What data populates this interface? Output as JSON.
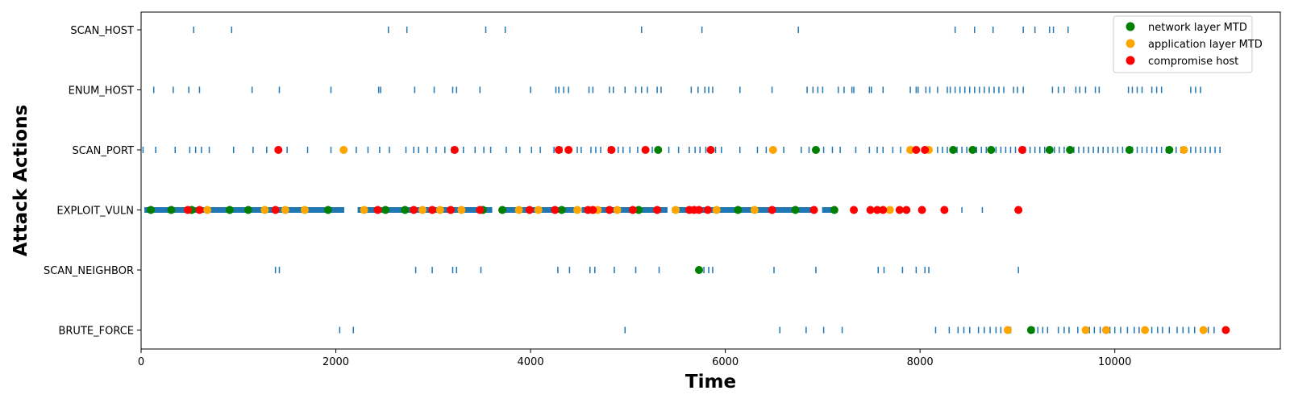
{
  "chart_data": {
    "type": "scatter",
    "title": "",
    "xlabel": "Time",
    "ylabel": "Attack Actions",
    "xlim": [
      0,
      11700
    ],
    "x_ticks": [
      0,
      2000,
      4000,
      6000,
      8000,
      10000
    ],
    "categories": [
      "BRUTE_FORCE",
      "SCAN_NEIGHBOR",
      "EXPLOIT_VULN",
      "SCAN_PORT",
      "ENUM_HOST",
      "SCAN_HOST"
    ],
    "grid": false,
    "legend_position": "top-right",
    "action_color": "#1f77b4",
    "actions": [
      {
        "category": "SCAN_HOST",
        "times": [
          540,
          930,
          2540,
          2730,
          3540,
          3740,
          5140,
          5760,
          6750,
          8360,
          8560,
          8750,
          9060,
          9180,
          9330,
          9370,
          9520
        ]
      },
      {
        "category": "ENUM_HOST",
        "times": [
          130,
          330,
          490,
          600,
          1140,
          1420,
          1950,
          2440,
          2460,
          2810,
          3010,
          3200,
          3240,
          3480,
          4000,
          4260,
          4290,
          4340,
          4390,
          4600,
          4640,
          4810,
          4850,
          4970,
          5080,
          5140,
          5200,
          5300,
          5340,
          5650,
          5720,
          5790,
          5830,
          5870,
          6150,
          6480,
          6840,
          6900,
          6950,
          7000,
          7160,
          7220,
          7300,
          7320,
          7480,
          7500,
          7620,
          7900,
          7960,
          7980,
          8060,
          8100,
          8180,
          8280,
          8310,
          8360,
          8410,
          8460,
          8510,
          8560,
          8610,
          8660,
          8710,
          8760,
          8810,
          8860,
          8960,
          9000,
          9060,
          9360,
          9420,
          9480,
          9600,
          9640,
          9700,
          9800,
          9840,
          10140,
          10180,
          10230,
          10280,
          10380,
          10430,
          10480,
          10780,
          10830,
          10880
        ]
      },
      {
        "category": "SCAN_PORT",
        "times": [
          20,
          150,
          350,
          500,
          560,
          620,
          700,
          950,
          1150,
          1290,
          1400,
          1500,
          1710,
          1950,
          2100,
          2210,
          2330,
          2450,
          2550,
          2720,
          2800,
          2850,
          2940,
          3030,
          3120,
          3190,
          3310,
          3430,
          3520,
          3590,
          3750,
          3890,
          4010,
          4100,
          4240,
          4320,
          4480,
          4520,
          4620,
          4670,
          4720,
          4800,
          4900,
          4950,
          5020,
          5100,
          5200,
          5250,
          5420,
          5520,
          5630,
          5690,
          5740,
          5800,
          5900,
          5960,
          6150,
          6330,
          6420,
          6600,
          6780,
          6860,
          6940,
          7010,
          7100,
          7180,
          7340,
          7480,
          7560,
          7620,
          7720,
          7800,
          7880,
          7960,
          8030,
          8090,
          8180,
          8230,
          8280,
          8330,
          8380,
          8430,
          8480,
          8530,
          8580,
          8630,
          8680,
          8730,
          8780,
          8830,
          8880,
          8930,
          8980,
          9030,
          9080,
          9130,
          9180,
          9230,
          9280,
          9330,
          9380,
          9430,
          9480,
          9530,
          9580,
          9630,
          9680,
          9730,
          9780,
          9830,
          9880,
          9930,
          9980,
          10030,
          10080,
          10130,
          10180,
          10230,
          10280,
          10330,
          10380,
          10430,
          10480,
          10530,
          10580,
          10630,
          10680,
          10730,
          10780,
          10830,
          10880,
          10930,
          10980,
          11030,
          11080
        ]
      },
      {
        "category": "EXPLOIT_VULN",
        "bands": [
          [
            40,
            2080
          ],
          [
            2230,
            3600
          ],
          [
            3700,
            4470
          ],
          [
            4530,
            5400
          ],
          [
            5460,
            6710
          ],
          [
            6760,
            6900
          ],
          [
            7000,
            7130
          ],
          [
            8430,
            8430
          ],
          [
            8640,
            8640
          ]
        ]
      },
      {
        "category": "SCAN_NEIGHBOR",
        "times": [
          1380,
          1420,
          2820,
          2990,
          3200,
          3240,
          3490,
          4280,
          4400,
          4610,
          4660,
          4860,
          5080,
          5320,
          5780,
          5830,
          5870,
          6500,
          6930,
          7570,
          7630,
          7820,
          7960,
          8050,
          8090,
          9010
        ]
      },
      {
        "category": "BRUTE_FORCE",
        "times": [
          2040,
          2180,
          4970,
          6560,
          6830,
          7010,
          7200,
          8160,
          8300,
          8390,
          8450,
          8510,
          8600,
          8660,
          8720,
          8780,
          8830,
          8930,
          9130,
          9170,
          9210,
          9260,
          9310,
          9420,
          9480,
          9530,
          9620,
          9680,
          9740,
          9790,
          9850,
          9950,
          10000,
          10060,
          10130,
          10200,
          10250,
          10380,
          10440,
          10490,
          10560,
          10640,
          10700,
          10760,
          10820,
          10960,
          11020
        ]
      }
    ],
    "series": [
      {
        "name": "network layer MTD",
        "color": "#008000",
        "points": [
          {
            "x": 100,
            "y": "EXPLOIT_VULN"
          },
          {
            "x": 310,
            "y": "EXPLOIT_VULN"
          },
          {
            "x": 520,
            "y": "EXPLOIT_VULN"
          },
          {
            "x": 910,
            "y": "EXPLOIT_VULN"
          },
          {
            "x": 1100,
            "y": "EXPLOIT_VULN"
          },
          {
            "x": 1920,
            "y": "EXPLOIT_VULN"
          },
          {
            "x": 2510,
            "y": "EXPLOIT_VULN"
          },
          {
            "x": 2710,
            "y": "EXPLOIT_VULN"
          },
          {
            "x": 3510,
            "y": "EXPLOIT_VULN"
          },
          {
            "x": 3710,
            "y": "EXPLOIT_VULN"
          },
          {
            "x": 4320,
            "y": "EXPLOIT_VULN"
          },
          {
            "x": 5110,
            "y": "EXPLOIT_VULN"
          },
          {
            "x": 6130,
            "y": "EXPLOIT_VULN"
          },
          {
            "x": 6720,
            "y": "EXPLOIT_VULN"
          },
          {
            "x": 7120,
            "y": "EXPLOIT_VULN"
          },
          {
            "x": 5310,
            "y": "SCAN_PORT"
          },
          {
            "x": 6930,
            "y": "SCAN_PORT"
          },
          {
            "x": 8340,
            "y": "SCAN_PORT"
          },
          {
            "x": 8540,
            "y": "SCAN_PORT"
          },
          {
            "x": 8730,
            "y": "SCAN_PORT"
          },
          {
            "x": 9330,
            "y": "SCAN_PORT"
          },
          {
            "x": 9540,
            "y": "SCAN_PORT"
          },
          {
            "x": 10150,
            "y": "SCAN_PORT"
          },
          {
            "x": 10560,
            "y": "SCAN_PORT"
          },
          {
            "x": 5730,
            "y": "SCAN_NEIGHBOR"
          },
          {
            "x": 9140,
            "y": "BRUTE_FORCE"
          }
        ]
      },
      {
        "name": "application layer MTD",
        "color": "#ffa500",
        "points": [
          {
            "x": 680,
            "y": "EXPLOIT_VULN"
          },
          {
            "x": 1270,
            "y": "EXPLOIT_VULN"
          },
          {
            "x": 1480,
            "y": "EXPLOIT_VULN"
          },
          {
            "x": 1680,
            "y": "EXPLOIT_VULN"
          },
          {
            "x": 2290,
            "y": "EXPLOIT_VULN"
          },
          {
            "x": 2890,
            "y": "EXPLOIT_VULN"
          },
          {
            "x": 3070,
            "y": "EXPLOIT_VULN"
          },
          {
            "x": 3290,
            "y": "EXPLOIT_VULN"
          },
          {
            "x": 3880,
            "y": "EXPLOIT_VULN"
          },
          {
            "x": 4080,
            "y": "EXPLOIT_VULN"
          },
          {
            "x": 4480,
            "y": "EXPLOIT_VULN"
          },
          {
            "x": 4690,
            "y": "EXPLOIT_VULN"
          },
          {
            "x": 4890,
            "y": "EXPLOIT_VULN"
          },
          {
            "x": 5490,
            "y": "EXPLOIT_VULN"
          },
          {
            "x": 5910,
            "y": "EXPLOIT_VULN"
          },
          {
            "x": 6300,
            "y": "EXPLOIT_VULN"
          },
          {
            "x": 7690,
            "y": "EXPLOIT_VULN"
          },
          {
            "x": 2080,
            "y": "SCAN_PORT"
          },
          {
            "x": 6490,
            "y": "SCAN_PORT"
          },
          {
            "x": 7900,
            "y": "SCAN_PORT"
          },
          {
            "x": 8090,
            "y": "SCAN_PORT"
          },
          {
            "x": 10710,
            "y": "SCAN_PORT"
          },
          {
            "x": 8900,
            "y": "BRUTE_FORCE"
          },
          {
            "x": 9700,
            "y": "BRUTE_FORCE"
          },
          {
            "x": 9910,
            "y": "BRUTE_FORCE"
          },
          {
            "x": 10310,
            "y": "BRUTE_FORCE"
          },
          {
            "x": 10910,
            "y": "BRUTE_FORCE"
          }
        ]
      },
      {
        "name": "compromise host",
        "color": "#ff0000",
        "points": [
          {
            "x": 480,
            "y": "EXPLOIT_VULN"
          },
          {
            "x": 600,
            "y": "EXPLOIT_VULN"
          },
          {
            "x": 1380,
            "y": "EXPLOIT_VULN"
          },
          {
            "x": 2430,
            "y": "EXPLOIT_VULN"
          },
          {
            "x": 2800,
            "y": "EXPLOIT_VULN"
          },
          {
            "x": 2990,
            "y": "EXPLOIT_VULN"
          },
          {
            "x": 3180,
            "y": "EXPLOIT_VULN"
          },
          {
            "x": 3480,
            "y": "EXPLOIT_VULN"
          },
          {
            "x": 3990,
            "y": "EXPLOIT_VULN"
          },
          {
            "x": 4250,
            "y": "EXPLOIT_VULN"
          },
          {
            "x": 4590,
            "y": "EXPLOIT_VULN"
          },
          {
            "x": 4640,
            "y": "EXPLOIT_VULN"
          },
          {
            "x": 4810,
            "y": "EXPLOIT_VULN"
          },
          {
            "x": 5050,
            "y": "EXPLOIT_VULN"
          },
          {
            "x": 5300,
            "y": "EXPLOIT_VULN"
          },
          {
            "x": 5630,
            "y": "EXPLOIT_VULN"
          },
          {
            "x": 5680,
            "y": "EXPLOIT_VULN"
          },
          {
            "x": 5730,
            "y": "EXPLOIT_VULN"
          },
          {
            "x": 5820,
            "y": "EXPLOIT_VULN"
          },
          {
            "x": 6480,
            "y": "EXPLOIT_VULN"
          },
          {
            "x": 6910,
            "y": "EXPLOIT_VULN"
          },
          {
            "x": 7320,
            "y": "EXPLOIT_VULN"
          },
          {
            "x": 7490,
            "y": "EXPLOIT_VULN"
          },
          {
            "x": 7560,
            "y": "EXPLOIT_VULN"
          },
          {
            "x": 7620,
            "y": "EXPLOIT_VULN"
          },
          {
            "x": 7790,
            "y": "EXPLOIT_VULN"
          },
          {
            "x": 7860,
            "y": "EXPLOIT_VULN"
          },
          {
            "x": 8020,
            "y": "EXPLOIT_VULN"
          },
          {
            "x": 8250,
            "y": "EXPLOIT_VULN"
          },
          {
            "x": 9010,
            "y": "EXPLOIT_VULN"
          },
          {
            "x": 1410,
            "y": "SCAN_PORT"
          },
          {
            "x": 3220,
            "y": "SCAN_PORT"
          },
          {
            "x": 4290,
            "y": "SCAN_PORT"
          },
          {
            "x": 4390,
            "y": "SCAN_PORT"
          },
          {
            "x": 4830,
            "y": "SCAN_PORT"
          },
          {
            "x": 5180,
            "y": "SCAN_PORT"
          },
          {
            "x": 5850,
            "y": "SCAN_PORT"
          },
          {
            "x": 7960,
            "y": "SCAN_PORT"
          },
          {
            "x": 8050,
            "y": "SCAN_PORT"
          },
          {
            "x": 9050,
            "y": "SCAN_PORT"
          },
          {
            "x": 11140,
            "y": "BRUTE_FORCE"
          }
        ]
      }
    ]
  }
}
